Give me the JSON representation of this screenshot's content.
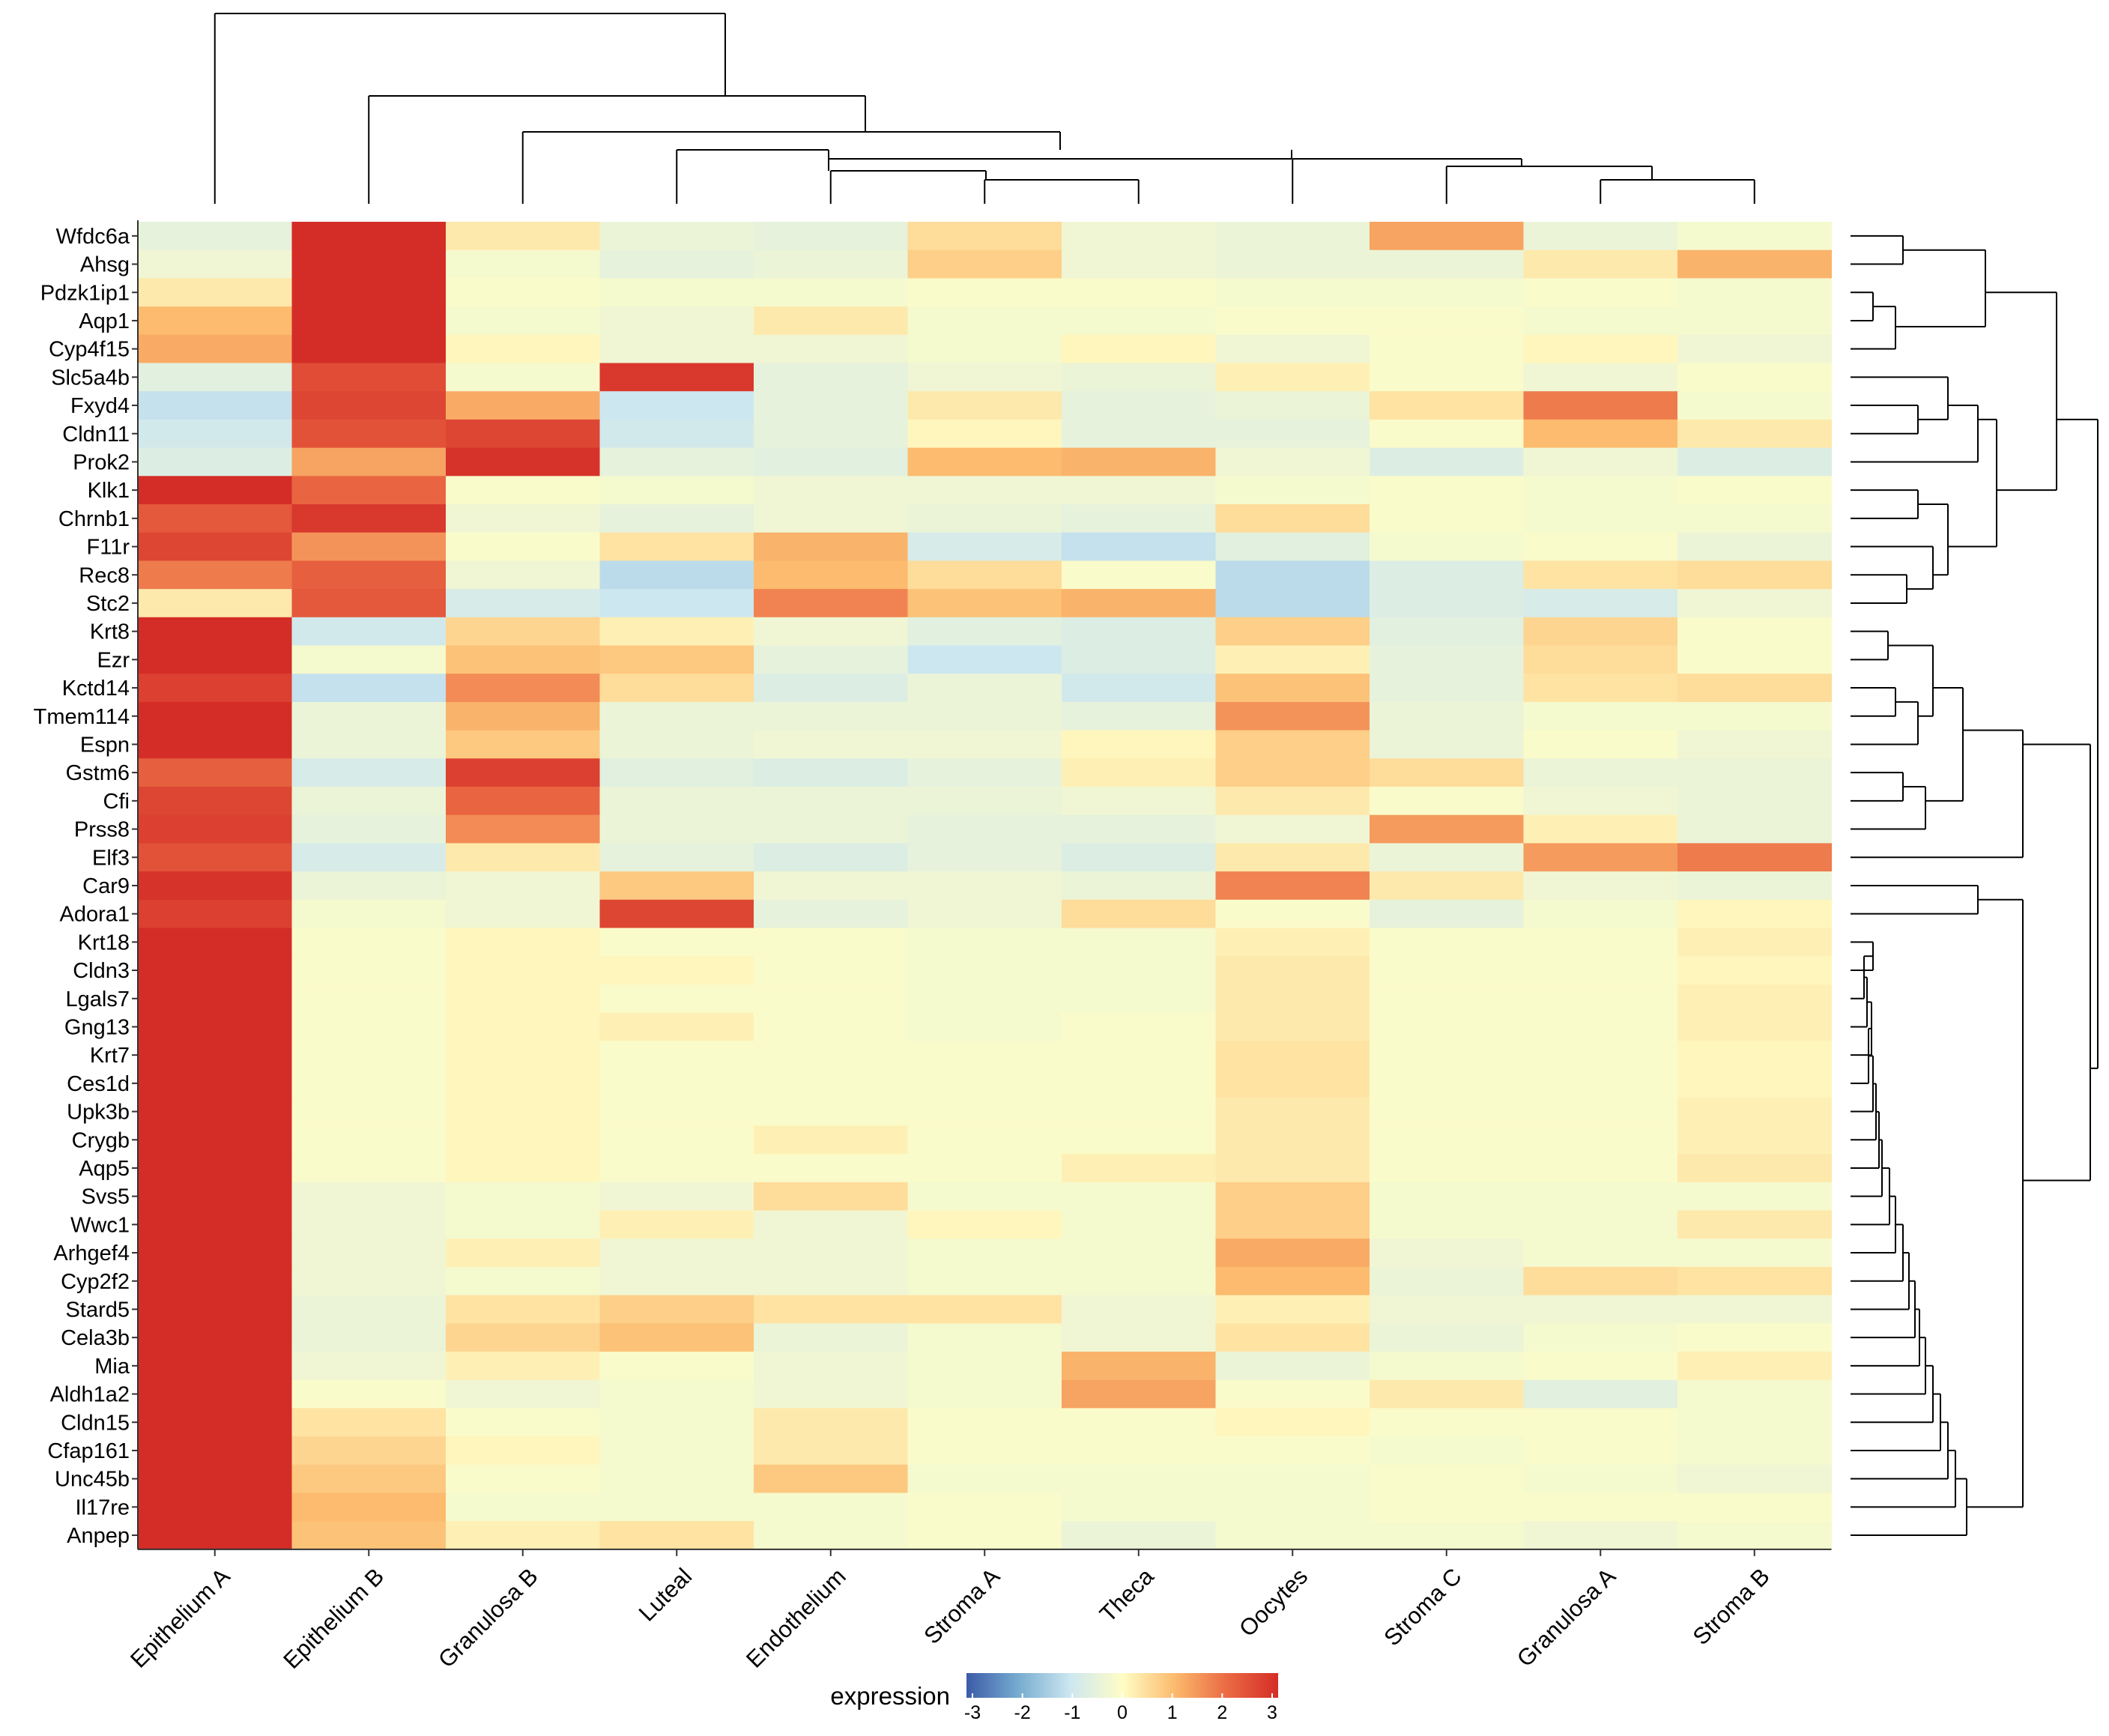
{
  "chart_data": {
    "type": "heatmap",
    "title": "",
    "columns": [
      "Epithelium A",
      "Epithelium B",
      "Granulosa B",
      "Luteal",
      "Endothelium",
      "Stroma A",
      "Theca",
      "Oocytes",
      "Stroma C",
      "Granulosa A",
      "Stroma B"
    ],
    "rows": [
      "Wfdc6a",
      "Ahsg",
      "Pdzk1ip1",
      "Aqp1",
      "Cyp4f15",
      "Slc5a4b",
      "Fxyd4",
      "Cldn11",
      "Prok2",
      "Klk1",
      "Chrnb1",
      "F11r",
      "Rec8",
      "Stc2",
      "Krt8",
      "Ezr",
      "Kctd14",
      "Tmem114",
      "Espn",
      "Gstm6",
      "Cfi",
      "Prss8",
      "Elf3",
      "Car9",
      "Adora1",
      "Krt18",
      "Cldn3",
      "Lgals7",
      "Gng13",
      "Krt7",
      "Ces1d",
      "Upk3b",
      "Crygb",
      "Aqp5",
      "Svs5",
      "Wwc1",
      "Arhgef4",
      "Cyp2f2",
      "Stard5",
      "Cela3b",
      "Mia",
      "Aldh1a2",
      "Cldn15",
      "Cfap161",
      "Unc45b",
      "Il17re",
      "Anpep"
    ],
    "values": [
      [
        -0.5,
        3,
        0.3,
        -0.4,
        -0.5,
        0.5,
        -0.3,
        -0.4,
        1.3,
        -0.4,
        -0.2
      ],
      [
        -0.3,
        3,
        -0.2,
        -0.5,
        -0.4,
        0.7,
        -0.3,
        -0.4,
        -0.4,
        0.3,
        1.1
      ],
      [
        0.3,
        3,
        -0.1,
        -0.2,
        -0.2,
        -0.1,
        -0.1,
        -0.2,
        -0.2,
        -0.1,
        -0.2
      ],
      [
        1.0,
        3,
        -0.2,
        -0.3,
        0.3,
        -0.2,
        -0.2,
        -0.1,
        -0.1,
        -0.2,
        -0.2
      ],
      [
        1.2,
        3,
        0.1,
        -0.3,
        -0.3,
        -0.2,
        0.1,
        -0.3,
        -0.1,
        0.1,
        -0.3
      ],
      [
        -0.6,
        2.5,
        -0.2,
        2.8,
        -0.5,
        -0.3,
        -0.4,
        0.2,
        -0.1,
        -0.3,
        -0.1
      ],
      [
        -1.1,
        2.6,
        1.2,
        -1.0,
        -0.5,
        0.3,
        -0.5,
        -0.4,
        0.4,
        1.8,
        -0.2
      ],
      [
        -0.9,
        2.4,
        2.6,
        -0.9,
        -0.5,
        0.1,
        -0.5,
        -0.5,
        -0.1,
        1.0,
        0.3
      ],
      [
        -0.7,
        1.3,
        2.9,
        -0.5,
        -0.6,
        1.0,
        1.1,
        -0.3,
        -0.7,
        -0.3,
        -0.7
      ],
      [
        3,
        2.1,
        -0.1,
        -0.2,
        -0.3,
        -0.3,
        -0.3,
        -0.2,
        -0.1,
        -0.2,
        -0.1
      ],
      [
        2.3,
        2.8,
        -0.3,
        -0.5,
        -0.3,
        -0.4,
        -0.5,
        0.5,
        -0.1,
        -0.2,
        -0.2
      ],
      [
        2.6,
        1.5,
        -0.1,
        0.4,
        1.1,
        -0.8,
        -1.1,
        -0.6,
        -0.2,
        -0.1,
        -0.4
      ],
      [
        1.8,
        2.2,
        -0.3,
        -1.2,
        1.0,
        0.5,
        -0.1,
        -1.2,
        -0.7,
        0.4,
        0.5
      ],
      [
        0.3,
        2.3,
        -0.8,
        -1.0,
        1.7,
        0.9,
        1.1,
        -1.2,
        -0.7,
        -0.8,
        -0.3
      ],
      [
        3,
        -0.9,
        0.6,
        0.2,
        -0.3,
        -0.6,
        -0.7,
        0.7,
        -0.6,
        0.6,
        -0.1
      ],
      [
        3,
        -0.2,
        0.9,
        0.8,
        -0.5,
        -1.0,
        -0.7,
        0.2,
        -0.5,
        0.5,
        -0.1
      ],
      [
        2.7,
        -1.1,
        1.6,
        0.5,
        -0.7,
        -0.4,
        -0.9,
        0.9,
        -0.5,
        0.4,
        0.5
      ],
      [
        3,
        -0.4,
        1.1,
        -0.4,
        -0.4,
        -0.4,
        -0.5,
        1.5,
        -0.4,
        -0.2,
        -0.2
      ],
      [
        3,
        -0.4,
        0.8,
        -0.4,
        -0.3,
        -0.3,
        0.1,
        0.7,
        -0.4,
        -0.1,
        -0.3
      ],
      [
        2.2,
        -0.8,
        2.7,
        -0.6,
        -0.7,
        -0.5,
        0.2,
        0.7,
        0.5,
        -0.4,
        -0.4
      ],
      [
        2.6,
        -0.4,
        2.1,
        -0.4,
        -0.4,
        -0.4,
        -0.3,
        0.3,
        -0.1,
        -0.3,
        -0.4
      ],
      [
        2.7,
        -0.5,
        1.6,
        -0.4,
        -0.4,
        -0.5,
        -0.5,
        -0.3,
        1.4,
        0.2,
        -0.4
      ],
      [
        2.4,
        -0.8,
        0.3,
        -0.5,
        -0.7,
        -0.5,
        -0.7,
        0.3,
        -0.4,
        1.4,
        1.8
      ],
      [
        2.9,
        -0.4,
        -0.3,
        0.8,
        -0.3,
        -0.3,
        -0.4,
        1.7,
        0.3,
        -0.3,
        -0.4
      ],
      [
        2.7,
        -0.2,
        -0.3,
        2.6,
        -0.5,
        -0.3,
        0.5,
        -0.1,
        -0.5,
        -0.2,
        0.1
      ],
      [
        3,
        -0.1,
        0.1,
        -0.1,
        -0.1,
        -0.2,
        -0.2,
        0.2,
        -0.1,
        -0.1,
        0.2
      ],
      [
        3,
        -0.1,
        0.1,
        0.1,
        -0.1,
        -0.2,
        -0.2,
        0.3,
        -0.1,
        -0.1,
        0.1
      ],
      [
        3,
        -0.1,
        0.1,
        -0.1,
        -0.1,
        -0.2,
        -0.2,
        0.3,
        -0.1,
        -0.1,
        0.2
      ],
      [
        3,
        -0.1,
        0.1,
        0.2,
        -0.1,
        -0.2,
        -0.1,
        0.3,
        -0.1,
        -0.1,
        0.2
      ],
      [
        3,
        -0.1,
        0.1,
        -0.1,
        -0.1,
        -0.1,
        -0.1,
        0.4,
        -0.1,
        -0.1,
        0.1
      ],
      [
        3,
        -0.1,
        0.1,
        -0.1,
        -0.1,
        -0.1,
        -0.1,
        0.4,
        -0.1,
        -0.1,
        0.1
      ],
      [
        3,
        -0.1,
        0.1,
        -0.1,
        -0.1,
        -0.1,
        -0.1,
        0.3,
        -0.1,
        -0.1,
        0.2
      ],
      [
        3,
        -0.1,
        0.1,
        -0.1,
        0.2,
        -0.1,
        -0.1,
        0.3,
        -0.1,
        -0.1,
        0.2
      ],
      [
        3,
        -0.1,
        0.1,
        -0.1,
        -0.1,
        -0.1,
        0.2,
        0.3,
        -0.1,
        -0.1,
        0.3
      ],
      [
        3,
        -0.3,
        -0.2,
        -0.3,
        0.5,
        -0.2,
        -0.2,
        0.7,
        -0.2,
        -0.2,
        -0.2
      ],
      [
        3,
        -0.3,
        -0.2,
        0.2,
        -0.3,
        0.1,
        -0.2,
        0.7,
        -0.2,
        -0.2,
        0.3
      ],
      [
        3,
        -0.3,
        0.2,
        -0.3,
        -0.3,
        -0.2,
        -0.2,
        1.2,
        -0.3,
        -0.2,
        -0.2
      ],
      [
        3,
        -0.3,
        -0.2,
        -0.3,
        -0.3,
        -0.2,
        -0.2,
        1.0,
        -0.4,
        0.5,
        0.4
      ],
      [
        3,
        -0.4,
        0.4,
        0.7,
        0.4,
        0.4,
        -0.3,
        0.2,
        -0.3,
        -0.3,
        -0.3
      ],
      [
        3,
        -0.4,
        0.6,
        0.9,
        -0.4,
        -0.2,
        -0.3,
        0.4,
        -0.4,
        -0.2,
        -0.1
      ],
      [
        3,
        -0.3,
        0.2,
        -0.1,
        -0.3,
        -0.2,
        1.1,
        -0.4,
        -0.2,
        -0.1,
        0.2
      ],
      [
        3,
        -0.1,
        -0.3,
        -0.2,
        -0.3,
        -0.2,
        1.3,
        -0.1,
        0.3,
        -0.6,
        -0.2
      ],
      [
        3,
        0.4,
        -0.1,
        -0.2,
        0.3,
        -0.1,
        -0.1,
        0.1,
        -0.1,
        -0.1,
        -0.2
      ],
      [
        3,
        0.6,
        0.1,
        -0.2,
        0.3,
        -0.1,
        -0.1,
        -0.1,
        -0.2,
        -0.1,
        -0.2
      ],
      [
        3,
        0.8,
        -0.1,
        -0.2,
        0.8,
        -0.2,
        -0.2,
        -0.2,
        -0.1,
        -0.2,
        -0.3
      ],
      [
        3,
        1.0,
        -0.2,
        -0.2,
        -0.2,
        -0.1,
        -0.2,
        -0.2,
        -0.1,
        -0.1,
        -0.1
      ],
      [
        3,
        0.9,
        0.2,
        0.4,
        -0.2,
        -0.1,
        -0.4,
        -0.2,
        -0.2,
        -0.3,
        -0.2
      ]
    ],
    "color_scale": {
      "stops": [
        -3,
        -2,
        -1,
        0,
        1,
        2,
        3
      ],
      "colors": [
        "#3C5BA8",
        "#77ACD0",
        "#CDE7F0",
        "#FFFDC6",
        "#FCBB6E",
        "#EB6B44",
        "#D42D27"
      ]
    },
    "legend": {
      "title": "expression",
      "ticks": [
        "-3",
        "-2",
        "-1",
        "0",
        "1",
        "2",
        "3"
      ],
      "placement": "bottom-center"
    },
    "column_dendrogram": true,
    "row_dendrogram": true
  }
}
